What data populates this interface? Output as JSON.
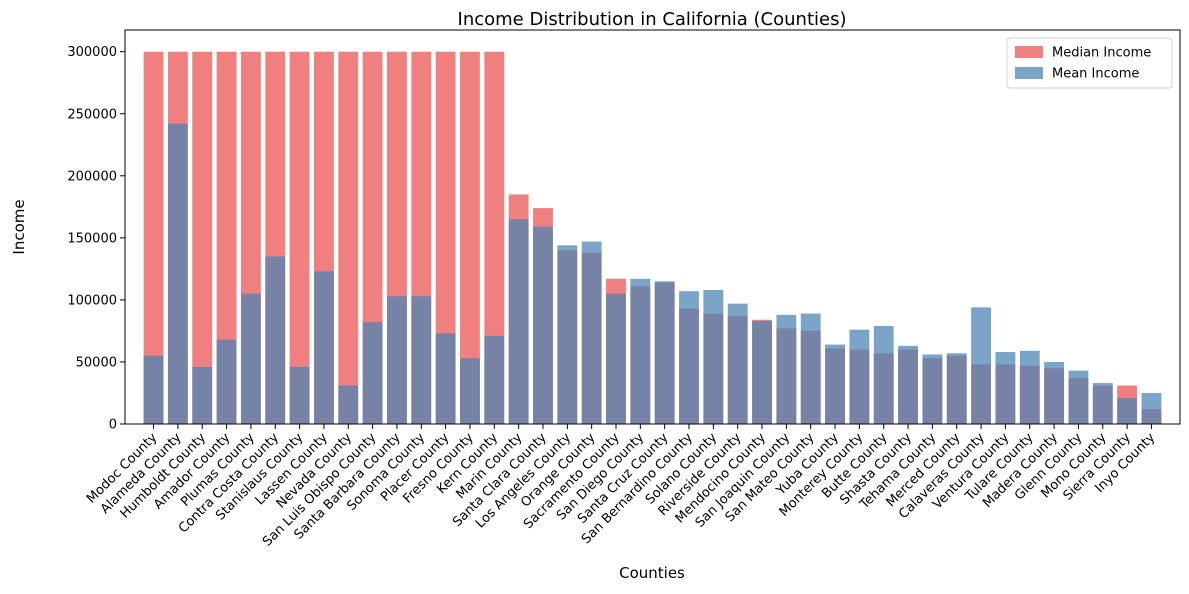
{
  "chart_data": {
    "type": "bar",
    "title": "Income Distribution in California (Counties)",
    "x_label": "Counties",
    "y_label": "Income",
    "categories": [
      "Modoc County",
      "Alameda County",
      "Humboldt County",
      "Amador County",
      "Plumas County",
      "Contra Costa County",
      "Stanislaus County",
      "Lassen County",
      "Nevada County",
      "San Luis Obispo County",
      "Santa Barbara County",
      "Sonoma County",
      "Placer County",
      "Fresno County",
      "Kern County",
      "Marin County",
      "Santa Clara County",
      "Los Angeles County",
      "Orange County",
      "Sacramento County",
      "San Diego County",
      "Santa Cruz County",
      "San Bernardino County",
      "Solano County",
      "Riverside County",
      "Mendocino County",
      "San Joaquin County",
      "San Mateo County",
      "Yuba County",
      "Monterey County",
      "Butte County",
      "Shasta County",
      "Tehama County",
      "Merced County",
      "Calaveras County",
      "Ventura County",
      "Tulare County",
      "Madera County",
      "Glenn County",
      "Mono County",
      "Sierra County",
      "Inyo County"
    ],
    "series": [
      {
        "name": "Median Income",
        "color": "#f08080",
        "values": [
          300000,
          300000,
          300000,
          300000,
          300000,
          300000,
          300000,
          300000,
          300000,
          300000,
          300000,
          300000,
          300000,
          300000,
          300000,
          185000,
          174000,
          140000,
          138000,
          117000,
          111000,
          114000,
          93000,
          89000,
          87000,
          84000,
          77000,
          75000,
          61000,
          60000,
          57000,
          60000,
          53000,
          55000,
          48000,
          48000,
          47000,
          45000,
          37000,
          31000,
          31000,
          12000
        ]
      },
      {
        "name": "Mean Income",
        "color": "#4682b4",
        "values": [
          55000,
          242000,
          46000,
          68000,
          105000,
          135000,
          46000,
          123000,
          31000,
          82000,
          103000,
          103000,
          73000,
          53000,
          71000,
          165000,
          159000,
          144000,
          147000,
          105000,
          117000,
          115000,
          107000,
          108000,
          97000,
          83000,
          88000,
          89000,
          64000,
          76000,
          79000,
          63000,
          56000,
          57000,
          94000,
          58000,
          59000,
          50000,
          43000,
          33000,
          21000,
          25000
        ]
      }
    ],
    "ylim": [
      0,
      317500
    ],
    "yticks": [
      0,
      50000,
      100000,
      150000,
      200000,
      250000,
      300000
    ],
    "legend": "upper right"
  }
}
